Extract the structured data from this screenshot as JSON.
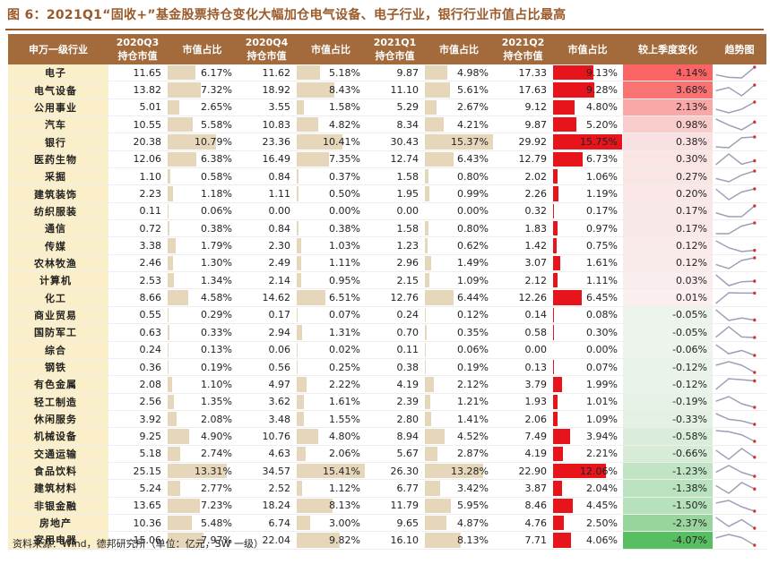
{
  "title": "图 6：2021Q1“固收+”基金股票持仓变化大幅加仓电气设备、电子行业，银行行业市值占比最高",
  "footer": "资料来源：Wind，德邦研究所（单位：亿元，SW 一级）",
  "headers": {
    "industry": "申万一级行业",
    "q3_a": "2020Q3",
    "q3_b": "持仓市值",
    "q3_pct": "市值占比",
    "q4_a": "2020Q4",
    "q4_b": "持仓市值",
    "q4_pct": "市值占比",
    "q1_a": "2021Q1",
    "q1_b": "持仓市值",
    "q1_pct": "市值占比",
    "q2_a": "2021Q2",
    "q2_b": "持仓市值",
    "q2_pct": "市值占比",
    "change": "较上季度变化",
    "trend": "趋势图"
  },
  "colors": {
    "header_bg": "#a36a3c",
    "industry_bg": "#fbefc9",
    "tan_bar": "#e2cfae",
    "red_bar": "#e8141b",
    "trend_line": "#9aa0b5",
    "trend_dot": "#d0342c"
  },
  "rows": [
    {
      "industry": "电子",
      "q3": "11.65",
      "q3_pct": "6.17%",
      "q4": "11.62",
      "q4_pct": "5.18%",
      "q1": "9.87",
      "q1_pct": "4.98%",
      "q2": "17.33",
      "q2_pct": "9.13%",
      "change": "4.14%"
    },
    {
      "industry": "电气设备",
      "q3": "13.82",
      "q3_pct": "7.32%",
      "q4": "18.92",
      "q4_pct": "8.43%",
      "q1": "11.10",
      "q1_pct": "5.61%",
      "q2": "17.63",
      "q2_pct": "9.28%",
      "change": "3.68%"
    },
    {
      "industry": "公用事业",
      "q3": "5.01",
      "q3_pct": "2.65%",
      "q4": "3.55",
      "q4_pct": "1.58%",
      "q1": "5.29",
      "q1_pct": "2.67%",
      "q2": "9.12",
      "q2_pct": "4.80%",
      "change": "2.13%"
    },
    {
      "industry": "汽车",
      "q3": "10.55",
      "q3_pct": "5.58%",
      "q4": "10.83",
      "q4_pct": "4.82%",
      "q1": "8.34",
      "q1_pct": "4.21%",
      "q2": "9.87",
      "q2_pct": "5.20%",
      "change": "0.98%"
    },
    {
      "industry": "银行",
      "q3": "20.38",
      "q3_pct": "10.79%",
      "q4": "23.36",
      "q4_pct": "10.41%",
      "q1": "30.43",
      "q1_pct": "15.37%",
      "q2": "29.92",
      "q2_pct": "15.75%",
      "change": "0.38%"
    },
    {
      "industry": "医药生物",
      "q3": "12.06",
      "q3_pct": "6.38%",
      "q4": "16.49",
      "q4_pct": "7.35%",
      "q1": "12.74",
      "q1_pct": "6.43%",
      "q2": "12.79",
      "q2_pct": "6.73%",
      "change": "0.30%"
    },
    {
      "industry": "采掘",
      "q3": "1.10",
      "q3_pct": "0.58%",
      "q4": "0.84",
      "q4_pct": "0.37%",
      "q1": "1.58",
      "q1_pct": "0.80%",
      "q2": "2.02",
      "q2_pct": "1.06%",
      "change": "0.27%"
    },
    {
      "industry": "建筑装饰",
      "q3": "2.23",
      "q3_pct": "1.18%",
      "q4": "1.11",
      "q4_pct": "0.50%",
      "q1": "1.95",
      "q1_pct": "0.99%",
      "q2": "2.26",
      "q2_pct": "1.19%",
      "change": "0.20%"
    },
    {
      "industry": "纺织服装",
      "q3": "0.11",
      "q3_pct": "0.06%",
      "q4": "0.00",
      "q4_pct": "0.00%",
      "q1": "0.00",
      "q1_pct": "0.00%",
      "q2": "0.32",
      "q2_pct": "0.17%",
      "change": "0.17%"
    },
    {
      "industry": "通信",
      "q3": "0.72",
      "q3_pct": "0.38%",
      "q4": "0.84",
      "q4_pct": "0.38%",
      "q1": "1.58",
      "q1_pct": "0.80%",
      "q2": "1.83",
      "q2_pct": "0.97%",
      "change": "0.17%"
    },
    {
      "industry": "传媒",
      "q3": "3.38",
      "q3_pct": "1.79%",
      "q4": "2.30",
      "q4_pct": "1.03%",
      "q1": "1.23",
      "q1_pct": "0.62%",
      "q2": "1.42",
      "q2_pct": "0.75%",
      "change": "0.12%"
    },
    {
      "industry": "农林牧渔",
      "q3": "2.46",
      "q3_pct": "1.30%",
      "q4": "2.49",
      "q4_pct": "1.11%",
      "q1": "2.96",
      "q1_pct": "1.49%",
      "q2": "3.07",
      "q2_pct": "1.61%",
      "change": "0.12%"
    },
    {
      "industry": "计算机",
      "q3": "2.53",
      "q3_pct": "1.34%",
      "q4": "2.14",
      "q4_pct": "0.95%",
      "q1": "2.15",
      "q1_pct": "1.09%",
      "q2": "2.12",
      "q2_pct": "1.11%",
      "change": "0.03%"
    },
    {
      "industry": "化工",
      "q3": "8.66",
      "q3_pct": "4.58%",
      "q4": "14.62",
      "q4_pct": "6.51%",
      "q1": "12.76",
      "q1_pct": "6.44%",
      "q2": "12.26",
      "q2_pct": "6.45%",
      "change": "0.01%"
    },
    {
      "industry": "商业贸易",
      "q3": "0.55",
      "q3_pct": "0.29%",
      "q4": "0.17",
      "q4_pct": "0.07%",
      "q1": "0.24",
      "q1_pct": "0.12%",
      "q2": "0.14",
      "q2_pct": "0.08%",
      "change": "-0.05%"
    },
    {
      "industry": "国防军工",
      "q3": "0.63",
      "q3_pct": "0.33%",
      "q4": "2.94",
      "q4_pct": "1.31%",
      "q1": "0.70",
      "q1_pct": "0.35%",
      "q2": "0.58",
      "q2_pct": "0.30%",
      "change": "-0.05%"
    },
    {
      "industry": "综合",
      "q3": "0.24",
      "q3_pct": "0.13%",
      "q4": "0.06",
      "q4_pct": "0.02%",
      "q1": "0.11",
      "q1_pct": "0.06%",
      "q2": "0.00",
      "q2_pct": "0.00%",
      "change": "-0.06%"
    },
    {
      "industry": "钢铁",
      "q3": "0.36",
      "q3_pct": "0.19%",
      "q4": "0.56",
      "q4_pct": "0.25%",
      "q1": "0.38",
      "q1_pct": "0.19%",
      "q2": "0.13",
      "q2_pct": "0.07%",
      "change": "-0.12%"
    },
    {
      "industry": "有色金属",
      "q3": "2.08",
      "q3_pct": "1.10%",
      "q4": "4.97",
      "q4_pct": "2.22%",
      "q1": "4.19",
      "q1_pct": "2.12%",
      "q2": "3.79",
      "q2_pct": "1.99%",
      "change": "-0.12%"
    },
    {
      "industry": "轻工制造",
      "q3": "2.56",
      "q3_pct": "1.35%",
      "q4": "3.62",
      "q4_pct": "1.61%",
      "q1": "2.39",
      "q1_pct": "1.21%",
      "q2": "1.93",
      "q2_pct": "1.01%",
      "change": "-0.19%"
    },
    {
      "industry": "休闲服务",
      "q3": "3.92",
      "q3_pct": "2.08%",
      "q4": "3.48",
      "q4_pct": "1.55%",
      "q1": "2.80",
      "q1_pct": "1.41%",
      "q2": "2.06",
      "q2_pct": "1.09%",
      "change": "-0.33%"
    },
    {
      "industry": "机械设备",
      "q3": "9.25",
      "q3_pct": "4.90%",
      "q4": "10.76",
      "q4_pct": "4.80%",
      "q1": "8.94",
      "q1_pct": "4.52%",
      "q2": "7.49",
      "q2_pct": "3.94%",
      "change": "-0.58%"
    },
    {
      "industry": "交通运输",
      "q3": "5.18",
      "q3_pct": "2.74%",
      "q4": "4.63",
      "q4_pct": "2.06%",
      "q1": "5.67",
      "q1_pct": "2.87%",
      "q2": "4.19",
      "q2_pct": "2.21%",
      "change": "-0.66%"
    },
    {
      "industry": "食品饮料",
      "q3": "25.15",
      "q3_pct": "13.31%",
      "q4": "34.57",
      "q4_pct": "15.41%",
      "q1": "26.30",
      "q1_pct": "13.28%",
      "q2": "22.90",
      "q2_pct": "12.06%",
      "change": "-1.23%"
    },
    {
      "industry": "建筑材料",
      "q3": "5.24",
      "q3_pct": "2.77%",
      "q4": "2.52",
      "q4_pct": "1.12%",
      "q1": "6.77",
      "q1_pct": "3.42%",
      "q2": "3.87",
      "q2_pct": "2.04%",
      "change": "-1.38%"
    },
    {
      "industry": "非银金融",
      "q3": "13.65",
      "q3_pct": "7.23%",
      "q4": "18.24",
      "q4_pct": "8.13%",
      "q1": "11.79",
      "q1_pct": "5.95%",
      "q2": "8.46",
      "q2_pct": "4.45%",
      "change": "-1.50%"
    },
    {
      "industry": "房地产",
      "q3": "10.36",
      "q3_pct": "5.48%",
      "q4": "6.74",
      "q4_pct": "3.00%",
      "q1": "9.65",
      "q1_pct": "4.87%",
      "q2": "4.76",
      "q2_pct": "2.50%",
      "change": "-2.37%"
    },
    {
      "industry": "家用电器",
      "q3": "15.06",
      "q3_pct": "7.97%",
      "q4": "22.04",
      "q4_pct": "9.82%",
      "q1": "16.10",
      "q1_pct": "8.13%",
      "q2": "7.71",
      "q2_pct": "4.06%",
      "change": "-4.07%"
    }
  ]
}
